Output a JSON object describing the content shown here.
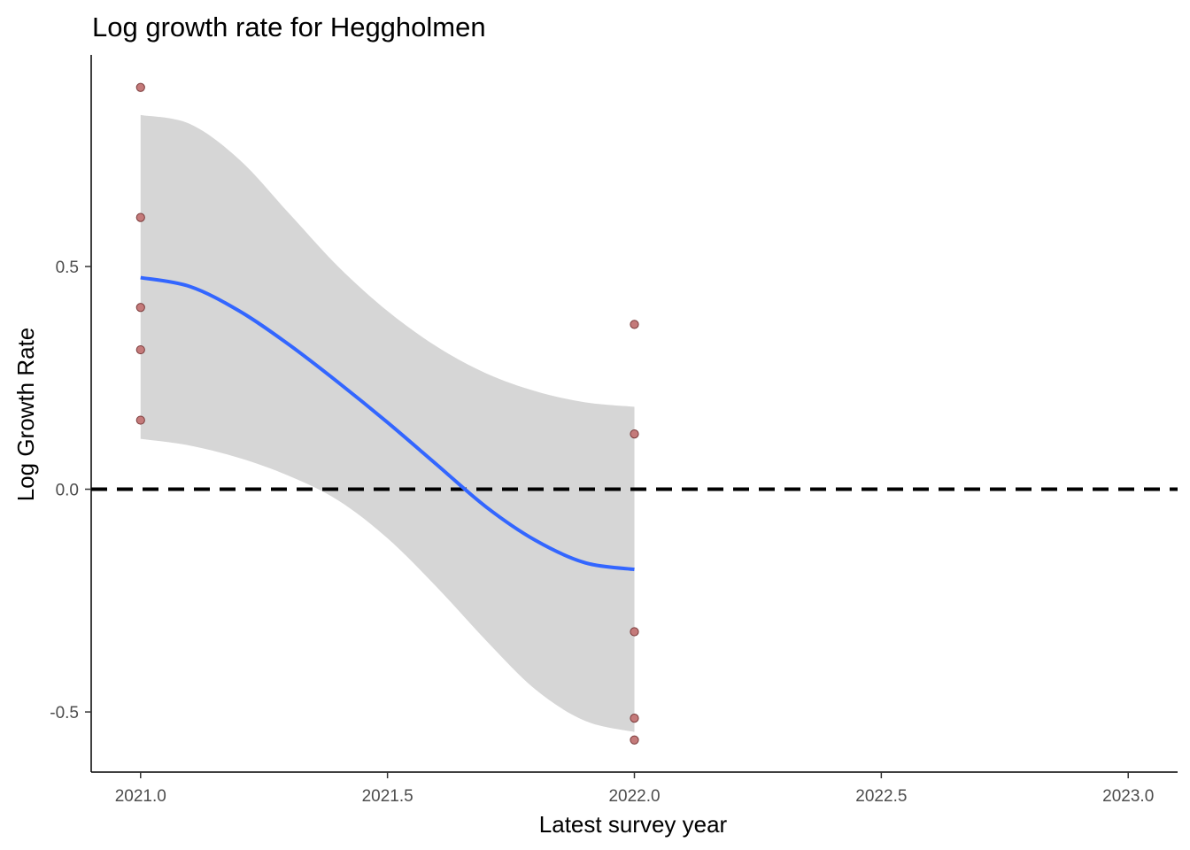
{
  "chart_data": {
    "type": "scatter",
    "title": "Log growth rate for Heggholmen",
    "xlabel": "Latest survey year",
    "ylabel": "Log Growth Rate",
    "xlim": [
      2020.9,
      2023.1
    ],
    "ylim": [
      -0.635,
      0.975
    ],
    "x_ticks": [
      2021.0,
      2021.5,
      2022.0,
      2022.5,
      2023.0
    ],
    "x_tick_labels": [
      "2021.0",
      "2021.5",
      "2022.0",
      "2022.5",
      "2023.0"
    ],
    "y_ticks": [
      -0.5,
      0.0,
      0.5
    ],
    "y_tick_labels": [
      "-0.5",
      "0.0",
      "0.5"
    ],
    "grid": false,
    "points": {
      "color": "#c47a7a",
      "stroke": "#7a3b3b",
      "x": [
        2021,
        2021,
        2021,
        2021,
        2021,
        2022,
        2022,
        2022,
        2022,
        2022
      ],
      "y": [
        0.902,
        0.61,
        0.408,
        0.313,
        0.155,
        0.37,
        0.124,
        -0.32,
        -0.514,
        -0.563
      ]
    },
    "smooth": {
      "color": "#3366ff",
      "x": [
        2021.0,
        2021.1,
        2021.2,
        2021.3,
        2021.4,
        2021.5,
        2021.6,
        2021.7,
        2021.8,
        2021.9,
        2022.0
      ],
      "y": [
        0.475,
        0.455,
        0.4,
        0.325,
        0.24,
        0.15,
        0.055,
        -0.04,
        -0.115,
        -0.165,
        -0.18
      ]
    },
    "confidence_band": {
      "color": "#d6d6d6",
      "x": [
        2021.0,
        2021.1,
        2021.2,
        2021.3,
        2021.4,
        2021.5,
        2021.6,
        2021.7,
        2021.8,
        2021.9,
        2022.0
      ],
      "upper": [
        0.84,
        0.82,
        0.74,
        0.62,
        0.5,
        0.4,
        0.32,
        0.26,
        0.22,
        0.195,
        0.185
      ],
      "lower": [
        0.113,
        0.098,
        0.07,
        0.03,
        -0.025,
        -0.11,
        -0.22,
        -0.34,
        -0.45,
        -0.52,
        -0.545
      ]
    },
    "reference_line": {
      "y": 0.0,
      "style": "dashed",
      "color": "#000000"
    }
  }
}
